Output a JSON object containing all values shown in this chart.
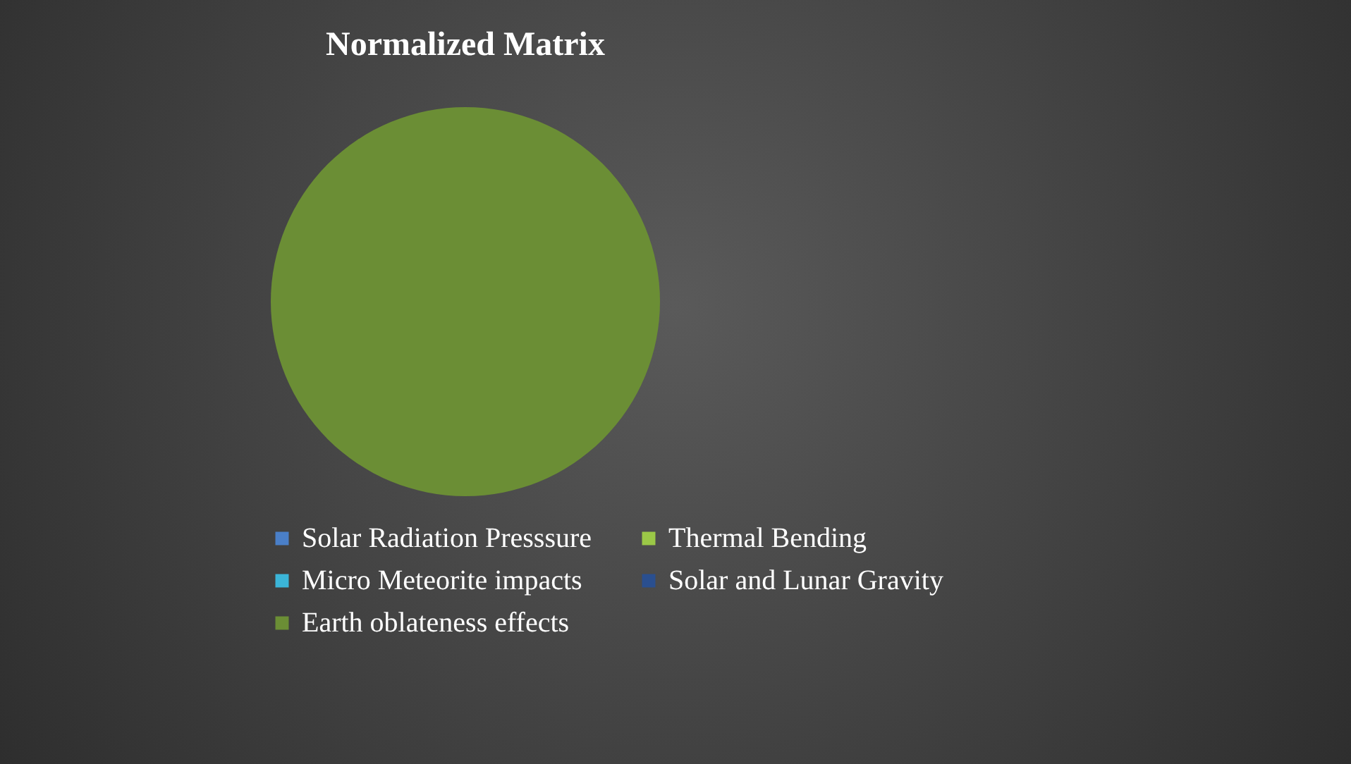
{
  "chart_data": {
    "type": "pie",
    "title": "Normalized Matrix",
    "categories": [
      "Solar Radiation Presssure",
      "Thermal Bending",
      "Micro Meteorite impacts",
      "Solar and Lunar Gravity",
      "Earth oblateness effects"
    ],
    "values": [
      0,
      0,
      0,
      0,
      100
    ],
    "colors": [
      "#4a7fc8",
      "#9bc847",
      "#3bb5d8",
      "#2a4f8f",
      "#6b8e35"
    ],
    "legend": "bottom"
  }
}
